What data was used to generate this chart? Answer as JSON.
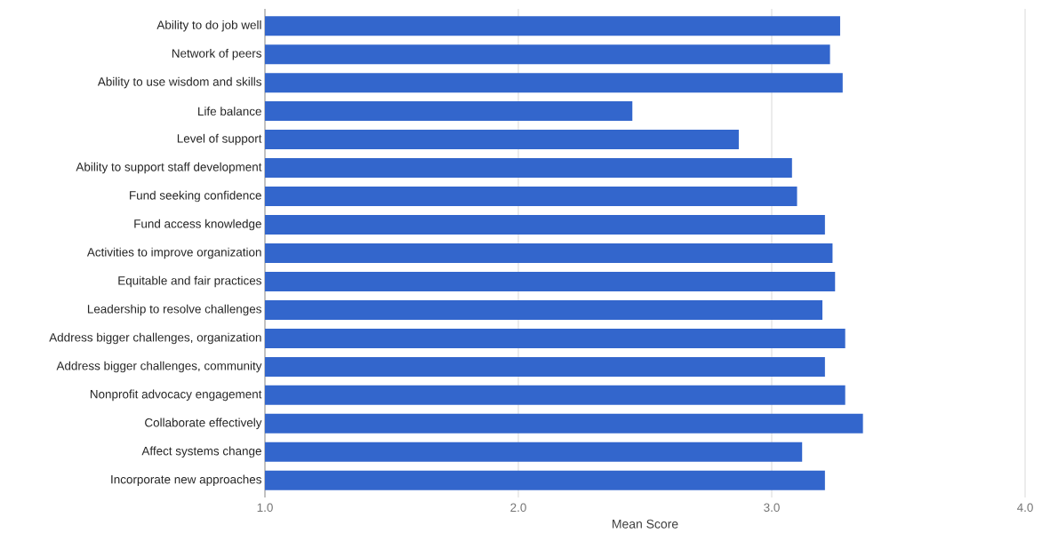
{
  "chart_data": {
    "type": "bar",
    "orientation": "horizontal",
    "xlabel": "Mean Score",
    "categories": [
      "Ability to do job well",
      "Network of peers",
      "Ability to use wisdom and skills",
      "Life balance",
      "Level of support",
      "Ability to support staff development",
      "Fund seeking confidence",
      "Fund access knowledge",
      "Activities to improve organization",
      "Equitable and fair practices",
      "Leadership to resolve challenges",
      "Address bigger challenges, organization",
      "Address bigger challenges, community",
      "Nonprofit advocacy engagement",
      "Collaborate effectively",
      "Affect systems change",
      "Incorporate new approaches"
    ],
    "values": [
      3.27,
      3.23,
      3.28,
      2.45,
      2.87,
      3.08,
      3.1,
      3.21,
      3.24,
      3.25,
      3.2,
      3.29,
      3.21,
      3.29,
      3.36,
      3.12,
      3.21
    ],
    "color": "#3366cc",
    "xlim": [
      1.0,
      4.0
    ],
    "xticks": [
      {
        "value": 1.0,
        "label": "1.0"
      },
      {
        "value": 2.0,
        "label": "2.0"
      },
      {
        "value": 3.0,
        "label": "3.0"
      },
      {
        "value": 4.0,
        "label": "4.0"
      }
    ],
    "grid": "x"
  }
}
